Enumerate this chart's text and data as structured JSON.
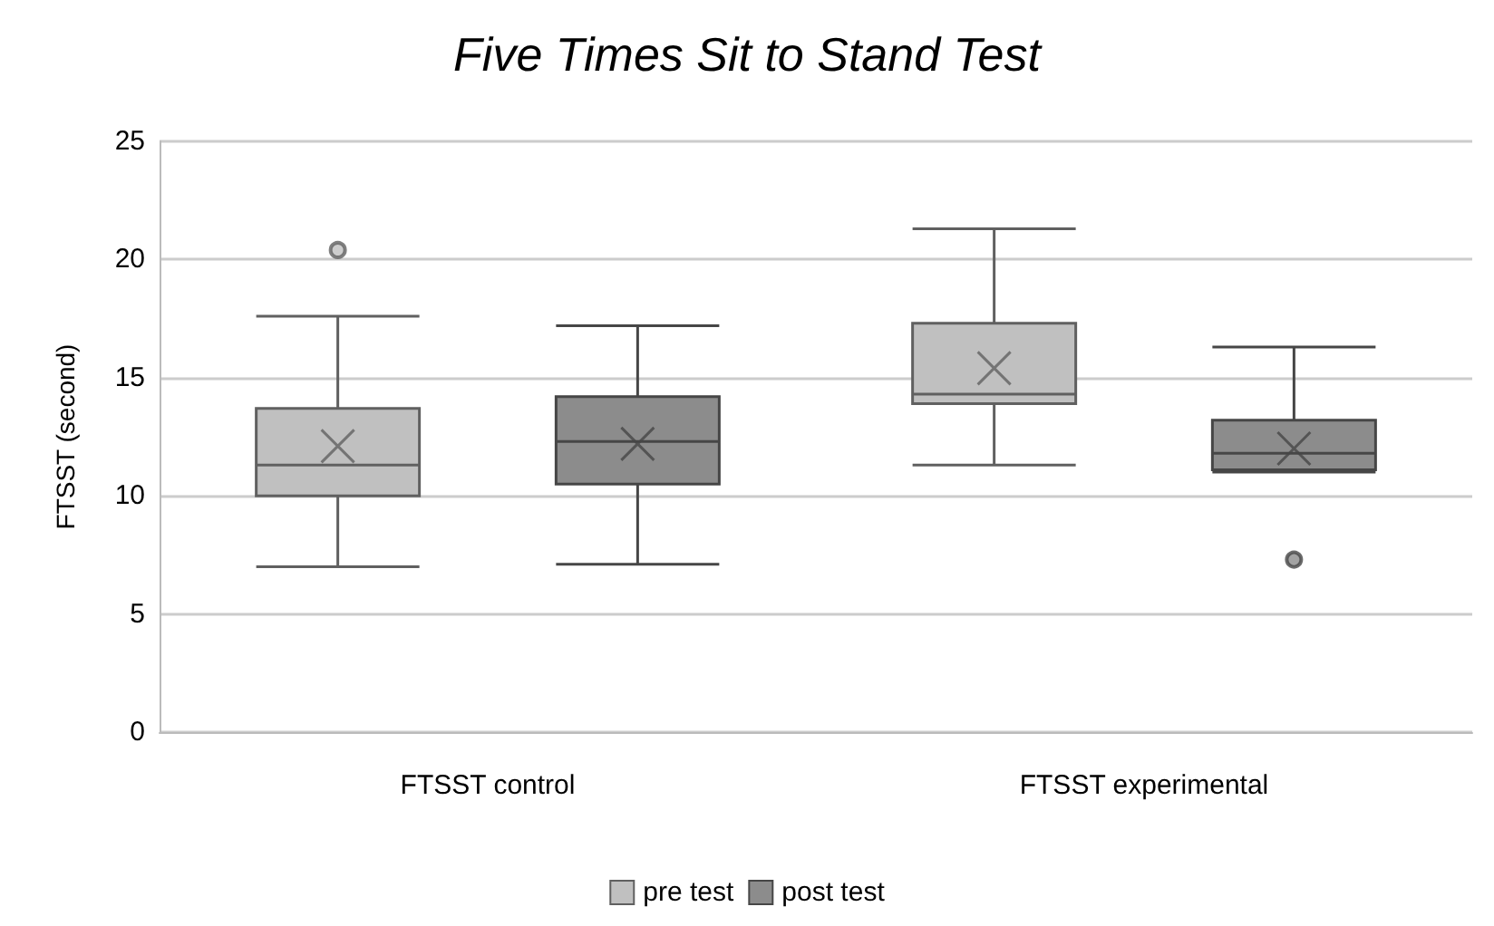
{
  "chart_data": {
    "type": "box",
    "title": "Five Times Sit to Stand Test",
    "ylabel": "FTSST (second)",
    "categories": [
      "FTSST control",
      "FTSST experimental"
    ],
    "series": [
      {
        "name": "pre test",
        "color": "#c0c0c0",
        "boxes": [
          {
            "low": 7.0,
            "q1": 10.0,
            "median": 11.3,
            "q3": 13.7,
            "high": 17.6,
            "mean": 12.1,
            "outliers": [
              20.4
            ]
          },
          {
            "low": 11.3,
            "q1": 13.9,
            "median": 14.3,
            "q3": 17.3,
            "high": 21.3,
            "mean": 15.4
          }
        ]
      },
      {
        "name": "post test",
        "color": "#8c8c8c",
        "boxes": [
          {
            "low": 7.1,
            "q1": 10.5,
            "median": 12.3,
            "q3": 14.2,
            "high": 17.2,
            "mean": 12.2
          },
          {
            "low": 11.0,
            "q1": 11.1,
            "median": 11.8,
            "q3": 13.2,
            "high": 16.3,
            "mean": 12.0,
            "outliers": [
              7.3
            ]
          }
        ]
      }
    ],
    "ylim": [
      0,
      25
    ],
    "yticks": [
      0,
      5,
      10,
      15,
      20,
      25
    ],
    "grid": "y",
    "legend": "bottom"
  }
}
